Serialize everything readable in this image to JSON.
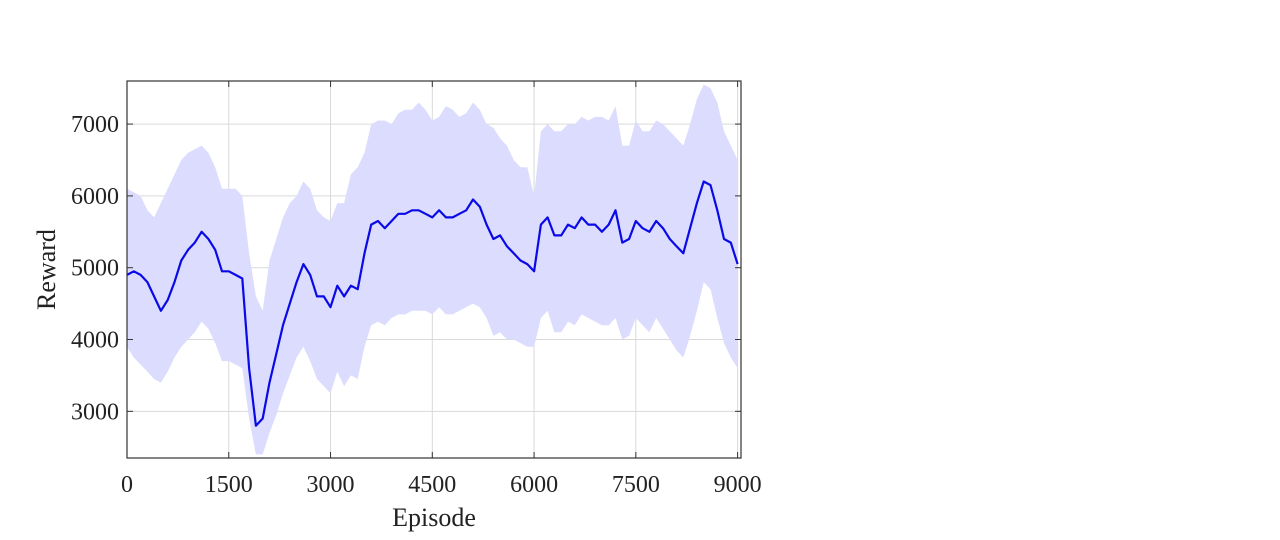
{
  "chart_data": {
    "type": "line",
    "title": "",
    "xlabel": "Episode",
    "ylabel": "Reward",
    "xlim": [
      0,
      9050
    ],
    "ylim": [
      2350,
      7600
    ],
    "xticks": [
      0,
      1500,
      3000,
      4500,
      6000,
      7500,
      9000
    ],
    "yticks": [
      3000,
      4000,
      5000,
      6000,
      7000
    ],
    "grid": true,
    "colors": {
      "line": "#0a0ae6",
      "band": "#dcdcff",
      "grid": "#d9d9d9",
      "axis": "#333333"
    },
    "series": [
      {
        "x": [
          0,
          100,
          200,
          300,
          400,
          500,
          600,
          700,
          800,
          900,
          1000,
          1100,
          1200,
          1300,
          1400,
          1500,
          1600,
          1700,
          1800,
          1900,
          2000,
          2100,
          2200,
          2300,
          2400,
          2500,
          2600,
          2700,
          2800,
          2900,
          3000,
          3100,
          3200,
          3300,
          3400,
          3500,
          3600,
          3700,
          3800,
          3900,
          4000,
          4100,
          4200,
          4300,
          4400,
          4500,
          4600,
          4700,
          4800,
          4900,
          5000,
          5100,
          5200,
          5300,
          5400,
          5500,
          5600,
          5700,
          5800,
          5900,
          6000,
          6100,
          6200,
          6300,
          6400,
          6500,
          6600,
          6700,
          6800,
          6900,
          7000,
          7100,
          7200,
          7300,
          7400,
          7500,
          7600,
          7700,
          7800,
          7900,
          8000,
          8100,
          8200,
          8300,
          8400,
          8500,
          8600,
          8700,
          8800,
          8900,
          9000
        ],
        "y": [
          4900,
          4950,
          4900,
          4800,
          4600,
          4400,
          4550,
          4800,
          5100,
          5250,
          5350,
          5500,
          5400,
          5250,
          4950,
          4950,
          4900,
          4850,
          3600,
          2800,
          2900,
          3400,
          3800,
          4200,
          4500,
          4800,
          5050,
          4900,
          4600,
          4600,
          4450,
          4750,
          4600,
          4750,
          4700,
          5200,
          5600,
          5650,
          5550,
          5650,
          5750,
          5750,
          5800,
          5800,
          5750,
          5700,
          5800,
          5700,
          5700,
          5750,
          5800,
          5950,
          5850,
          5600,
          5400,
          5450,
          5300,
          5200,
          5100,
          5050,
          4950,
          5600,
          5700,
          5450,
          5450,
          5600,
          5550,
          5700,
          5600,
          5600,
          5500,
          5600,
          5800,
          5350,
          5400,
          5650,
          5550,
          5500,
          5650,
          5550,
          5400,
          5300,
          5200,
          5550,
          5900,
          6200,
          6150,
          5800,
          5400,
          5350,
          5050
        ],
        "upper": [
          6100,
          6050,
          6000,
          5800,
          5700,
          5900,
          6100,
          6300,
          6500,
          6600,
          6650,
          6700,
          6600,
          6400,
          6100,
          6100,
          6100,
          6000,
          5200,
          4600,
          4400,
          5100,
          5400,
          5700,
          5900,
          6000,
          6200,
          6100,
          5800,
          5700,
          5650,
          5900,
          5900,
          6300,
          6400,
          6600,
          7000,
          7050,
          7050,
          7000,
          7150,
          7200,
          7200,
          7300,
          7200,
          7050,
          7100,
          7250,
          7200,
          7100,
          7150,
          7300,
          7200,
          7000,
          6950,
          6800,
          6700,
          6500,
          6400,
          6400,
          6000,
          6900,
          7000,
          6900,
          6900,
          7000,
          7000,
          7100,
          7050,
          7100,
          7100,
          7050,
          7250,
          6700,
          6700,
          7050,
          6900,
          6900,
          7050,
          7000,
          6900,
          6800,
          6700,
          7000,
          7350,
          7550,
          7500,
          7300,
          6900,
          6700,
          6500
        ],
        "lower": [
          3900,
          3750,
          3650,
          3550,
          3450,
          3400,
          3550,
          3750,
          3900,
          4000,
          4100,
          4250,
          4150,
          3950,
          3700,
          3700,
          3650,
          3600,
          2900,
          2400,
          2400,
          2700,
          2950,
          3250,
          3500,
          3750,
          3900,
          3700,
          3450,
          3350,
          3250,
          3550,
          3350,
          3500,
          3450,
          3900,
          4200,
          4250,
          4200,
          4300,
          4350,
          4350,
          4400,
          4400,
          4400,
          4350,
          4450,
          4350,
          4350,
          4400,
          4450,
          4500,
          4450,
          4300,
          4050,
          4100,
          4000,
          4000,
          3950,
          3900,
          3900,
          4300,
          4400,
          4100,
          4100,
          4250,
          4200,
          4350,
          4300,
          4250,
          4200,
          4200,
          4300,
          4000,
          4050,
          4300,
          4200,
          4100,
          4300,
          4150,
          4000,
          3850,
          3750,
          4050,
          4400,
          4800,
          4700,
          4300,
          3950,
          3750,
          3600
        ]
      }
    ]
  }
}
